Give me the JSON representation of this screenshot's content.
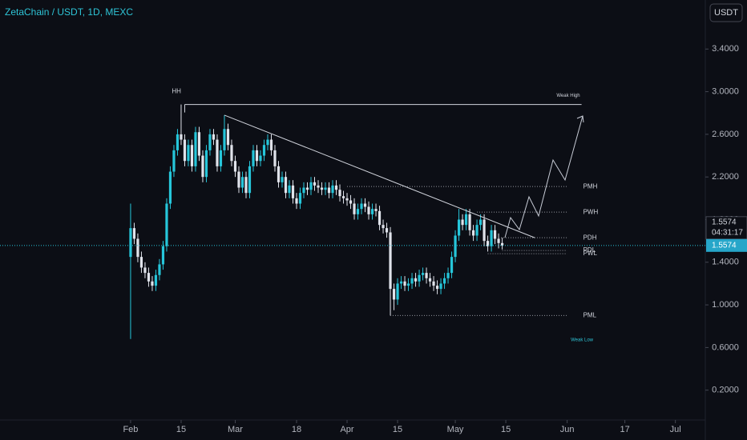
{
  "chart_data": {
    "type": "candlestick",
    "title": "ZetaChain / USDT, 1D, MEXC",
    "currency": "USDT",
    "countdown": "04:31:17",
    "up_color": "#26c6da",
    "down_color": "#e0e3eb",
    "xlim": [
      -36.2,
      159.3
    ],
    "ylim": [
      -0.08,
      3.86
    ],
    "xticks": [
      {
        "value": 0,
        "label": "Feb"
      },
      {
        "value": 14,
        "label": "15"
      },
      {
        "value": 29,
        "label": "Mar"
      },
      {
        "value": 46,
        "label": "18"
      },
      {
        "value": 60,
        "label": "Apr"
      },
      {
        "value": 74,
        "label": "15"
      },
      {
        "value": 90,
        "label": "May"
      },
      {
        "value": 104,
        "label": "15"
      },
      {
        "value": 121,
        "label": "Jun"
      },
      {
        "value": 137,
        "label": "17"
      },
      {
        "value": 151,
        "label": "Jul"
      }
    ],
    "yticks": [
      {
        "value": 0.2,
        "label": "0.2000"
      },
      {
        "value": 0.6,
        "label": "0.6000"
      },
      {
        "value": 1.0,
        "label": "1.0000"
      },
      {
        "value": 1.4,
        "label": "1.4000"
      },
      {
        "value": 1.8,
        "label": "1.8000"
      },
      {
        "value": 2.2,
        "label": "2.2000"
      },
      {
        "value": 2.6,
        "label": "2.6000"
      },
      {
        "value": 3.0,
        "label": "3.0000"
      },
      {
        "value": 3.4,
        "label": "3.4000"
      }
    ],
    "x": [
      0,
      1,
      2,
      3,
      4,
      5,
      6,
      7,
      8,
      9,
      10,
      11,
      12,
      13,
      14,
      15,
      16,
      17,
      18,
      19,
      20,
      21,
      22,
      23,
      24,
      25,
      26,
      27,
      28,
      29,
      30,
      31,
      32,
      33,
      34,
      35,
      36,
      37,
      38,
      39,
      40,
      41,
      42,
      43,
      44,
      45,
      46,
      47,
      48,
      49,
      50,
      51,
      52,
      53,
      54,
      55,
      56,
      57,
      58,
      59,
      60,
      61,
      62,
      63,
      64,
      65,
      66,
      67,
      68,
      69,
      70,
      71,
      72,
      73,
      74,
      75,
      76,
      77,
      78,
      79,
      80,
      81,
      82,
      83,
      84,
      85,
      86,
      87,
      88,
      89,
      90,
      91,
      92,
      93,
      94,
      95,
      96,
      97,
      98,
      99,
      100,
      101,
      102,
      103
    ],
    "open": [
      1.45,
      1.72,
      1.62,
      1.45,
      1.35,
      1.3,
      1.22,
      1.18,
      1.28,
      1.38,
      1.55,
      1.95,
      2.25,
      2.45,
      2.6,
      2.55,
      2.35,
      2.5,
      2.3,
      2.62,
      2.4,
      2.2,
      2.45,
      2.6,
      2.55,
      2.3,
      2.45,
      2.65,
      2.5,
      2.35,
      2.25,
      2.1,
      2.2,
      2.05,
      2.3,
      2.45,
      2.35,
      2.4,
      2.5,
      2.55,
      2.45,
      2.3,
      2.15,
      2.2,
      2.05,
      2.12,
      2.0,
      1.95,
      2.05,
      2.1,
      2.08,
      2.15,
      2.12,
      2.1,
      2.08,
      2.1,
      2.05,
      2.12,
      2.08,
      2.02,
      2.0,
      1.98,
      1.95,
      1.85,
      1.9,
      1.95,
      1.92,
      1.85,
      1.9,
      1.88,
      1.75,
      1.72,
      1.68,
      1.15,
      1.05,
      1.2,
      1.22,
      1.18,
      1.2,
      1.25,
      1.22,
      1.28,
      1.3,
      1.25,
      1.22,
      1.18,
      1.15,
      1.2,
      1.25,
      1.3,
      1.45,
      1.65,
      1.8,
      1.75,
      1.85,
      1.7,
      1.65,
      1.75,
      1.8,
      1.6,
      1.55,
      1.7,
      1.62,
      1.58
    ],
    "high": [
      1.95,
      1.77,
      1.67,
      1.5,
      1.4,
      1.35,
      1.27,
      1.33,
      1.43,
      1.6,
      2.0,
      2.3,
      2.5,
      2.65,
      2.88,
      2.6,
      2.55,
      2.55,
      2.67,
      2.67,
      2.45,
      2.5,
      2.65,
      2.65,
      2.6,
      2.5,
      2.78,
      2.7,
      2.55,
      2.4,
      2.3,
      2.25,
      2.25,
      2.35,
      2.5,
      2.5,
      2.45,
      2.55,
      2.6,
      2.6,
      2.5,
      2.35,
      2.25,
      2.25,
      2.17,
      2.17,
      2.05,
      2.1,
      2.15,
      2.15,
      2.2,
      2.2,
      2.17,
      2.15,
      2.15,
      2.15,
      2.17,
      2.17,
      2.13,
      2.07,
      2.05,
      2.03,
      2.0,
      1.95,
      2.0,
      2.0,
      1.97,
      1.95,
      1.95,
      1.93,
      1.8,
      1.77,
      1.73,
      1.2,
      1.25,
      1.27,
      1.27,
      1.25,
      1.3,
      1.3,
      1.33,
      1.35,
      1.35,
      1.3,
      1.27,
      1.23,
      1.25,
      1.3,
      1.35,
      1.5,
      1.7,
      1.9,
      1.85,
      1.9,
      1.9,
      1.75,
      1.8,
      1.85,
      1.85,
      1.65,
      1.75,
      1.75,
      1.67,
      1.63
    ],
    "low": [
      0.68,
      1.57,
      1.4,
      1.3,
      1.25,
      1.17,
      1.13,
      1.13,
      1.23,
      1.33,
      1.5,
      1.9,
      2.2,
      2.4,
      2.5,
      2.3,
      2.3,
      2.25,
      2.25,
      2.35,
      2.15,
      2.15,
      2.4,
      2.5,
      2.25,
      2.25,
      2.4,
      2.45,
      2.3,
      2.2,
      2.05,
      2.05,
      2.0,
      2.0,
      2.25,
      2.3,
      2.3,
      2.35,
      2.45,
      2.4,
      2.25,
      2.1,
      2.1,
      2.0,
      2.0,
      1.95,
      1.9,
      1.9,
      2.0,
      2.03,
      2.03,
      2.07,
      2.05,
      2.03,
      2.03,
      2.0,
      2.0,
      2.03,
      1.97,
      1.95,
      1.93,
      1.9,
      1.8,
      1.8,
      1.85,
      1.87,
      1.8,
      1.8,
      1.83,
      1.7,
      1.67,
      1.63,
      0.9,
      0.95,
      1.0,
      1.15,
      1.13,
      1.13,
      1.15,
      1.17,
      1.17,
      1.23,
      1.2,
      1.17,
      1.13,
      1.1,
      1.1,
      1.15,
      1.2,
      1.25,
      1.4,
      1.6,
      1.7,
      1.7,
      1.65,
      1.6,
      1.6,
      1.7,
      1.55,
      1.5,
      1.5,
      1.57,
      1.53,
      1.52
    ],
    "close": [
      1.72,
      1.62,
      1.45,
      1.35,
      1.3,
      1.22,
      1.18,
      1.28,
      1.38,
      1.55,
      1.95,
      2.25,
      2.45,
      2.6,
      2.55,
      2.35,
      2.5,
      2.3,
      2.62,
      2.4,
      2.2,
      2.45,
      2.6,
      2.55,
      2.3,
      2.45,
      2.65,
      2.5,
      2.35,
      2.25,
      2.1,
      2.2,
      2.05,
      2.3,
      2.45,
      2.35,
      2.4,
      2.5,
      2.55,
      2.45,
      2.3,
      2.15,
      2.2,
      2.05,
      2.12,
      2.0,
      1.95,
      2.05,
      2.1,
      2.08,
      2.15,
      2.12,
      2.1,
      2.08,
      2.1,
      2.05,
      2.12,
      2.08,
      2.02,
      2.0,
      1.98,
      1.95,
      1.85,
      1.9,
      1.95,
      1.92,
      1.85,
      1.9,
      1.88,
      1.75,
      1.72,
      1.68,
      1.15,
      1.05,
      1.2,
      1.22,
      1.18,
      1.2,
      1.25,
      1.22,
      1.28,
      1.3,
      1.25,
      1.22,
      1.18,
      1.15,
      1.2,
      1.25,
      1.3,
      1.45,
      1.65,
      1.8,
      1.75,
      1.85,
      1.7,
      1.65,
      1.75,
      1.8,
      1.6,
      1.55,
      1.7,
      1.62,
      1.58,
      1.5574
    ],
    "levels": [
      {
        "label": "Weak High",
        "value": 2.88,
        "start": 15,
        "end": 125,
        "style": "solid"
      },
      {
        "label": "PMH",
        "value": 2.11,
        "start": 60,
        "end": 121,
        "style": "dotted"
      },
      {
        "label": "PWH",
        "value": 1.87,
        "start": 96,
        "end": 121,
        "style": "dotted"
      },
      {
        "label": "PDH",
        "value": 1.63,
        "start": 102,
        "end": 121,
        "style": "dotted"
      },
      {
        "label": "PDL",
        "value": 1.51,
        "start": 103,
        "end": 121,
        "style": "dotted"
      },
      {
        "label": "PWL",
        "value": 1.48,
        "start": 99,
        "end": 121,
        "style": "dotted"
      },
      {
        "label": "PML",
        "value": 0.9,
        "start": 72,
        "end": 121,
        "style": "dotted"
      }
    ],
    "notes": [
      {
        "text": "HH",
        "x": 14,
        "y": 3.0
      },
      {
        "text": "Weak Low",
        "x": 122,
        "y": 0.67
      }
    ],
    "trendline": {
      "x": [
        26,
        112
      ],
      "y": [
        2.78,
        1.63
      ]
    }
  }
}
